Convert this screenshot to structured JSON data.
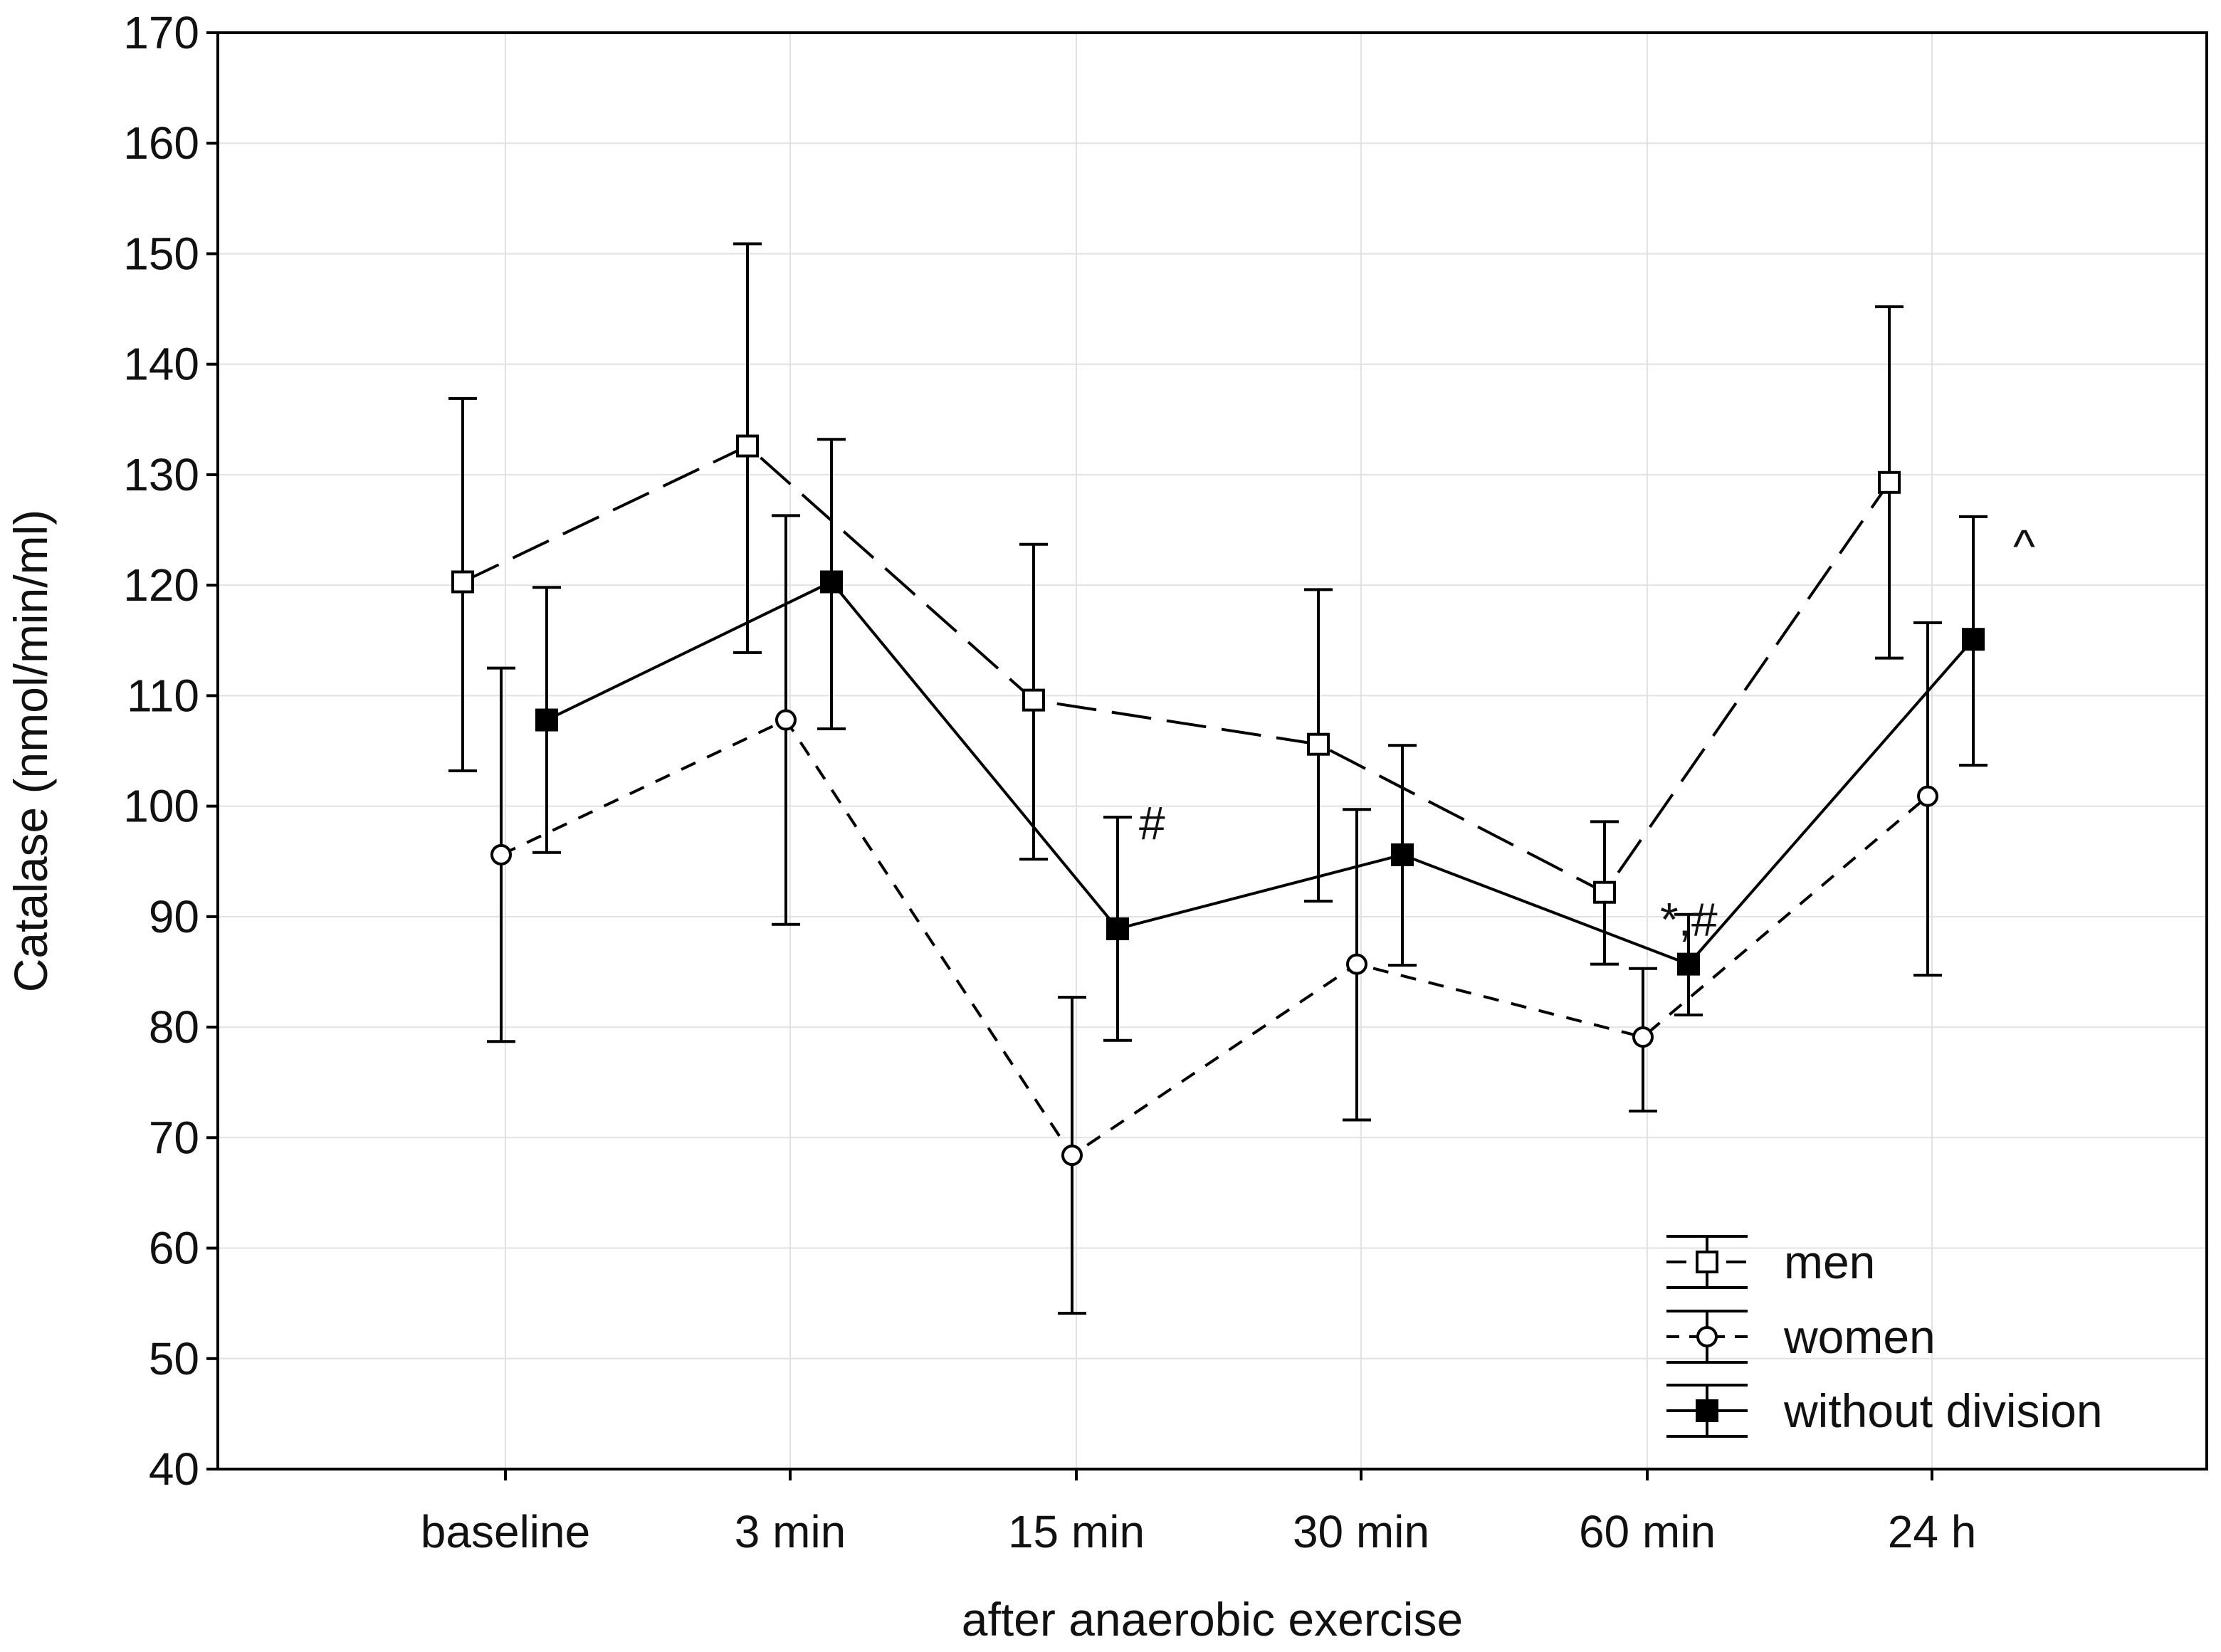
{
  "chart_data": {
    "type": "line",
    "title": "",
    "xlabel": "after anaerobic exercise",
    "ylabel": "Catalase (nmol/min/ml)",
    "categories": [
      "baseline",
      "3 min",
      "15 min",
      "30 min",
      "60 min",
      "24 h"
    ],
    "ylim": [
      40,
      170
    ],
    "yticks": [
      40,
      50,
      60,
      70,
      80,
      90,
      100,
      110,
      120,
      130,
      140,
      150,
      160,
      170
    ],
    "grid": true,
    "legend_position": "bottom-right",
    "series": [
      {
        "name": "men",
        "marker": "open-square",
        "line": "long-dash",
        "values": [
          120.3,
          132.6,
          109.6,
          105.6,
          92.2,
          129.3
        ],
        "err_low": [
          103.2,
          113.9,
          95.2,
          91.4,
          85.7,
          113.4
        ],
        "err_high": [
          136.9,
          150.9,
          123.7,
          119.6,
          98.6,
          145.2
        ]
      },
      {
        "name": "women",
        "marker": "open-circle",
        "line": "short-dash",
        "values": [
          95.6,
          107.8,
          68.4,
          85.7,
          79.1,
          100.9
        ],
        "err_low": [
          78.7,
          89.3,
          54.1,
          71.6,
          72.4,
          84.7
        ],
        "err_high": [
          112.5,
          126.3,
          82.7,
          99.7,
          85.3,
          116.6
        ]
      },
      {
        "name": "without division",
        "marker": "filled-square",
        "line": "solid",
        "values": [
          107.8,
          120.3,
          88.9,
          95.6,
          85.7,
          115.1
        ],
        "err_low": [
          95.8,
          107.0,
          78.8,
          85.6,
          81.1,
          103.7
        ],
        "err_high": [
          119.8,
          133.2,
          99.0,
          105.5,
          90.2,
          126.2
        ]
      }
    ],
    "annotations": [
      {
        "text": "#",
        "category": "15 min",
        "series": "without division"
      },
      {
        "text": "*,#",
        "category": "60 min",
        "series": "without division"
      },
      {
        "text": "^",
        "category": "24 h",
        "series": "without division"
      }
    ]
  }
}
